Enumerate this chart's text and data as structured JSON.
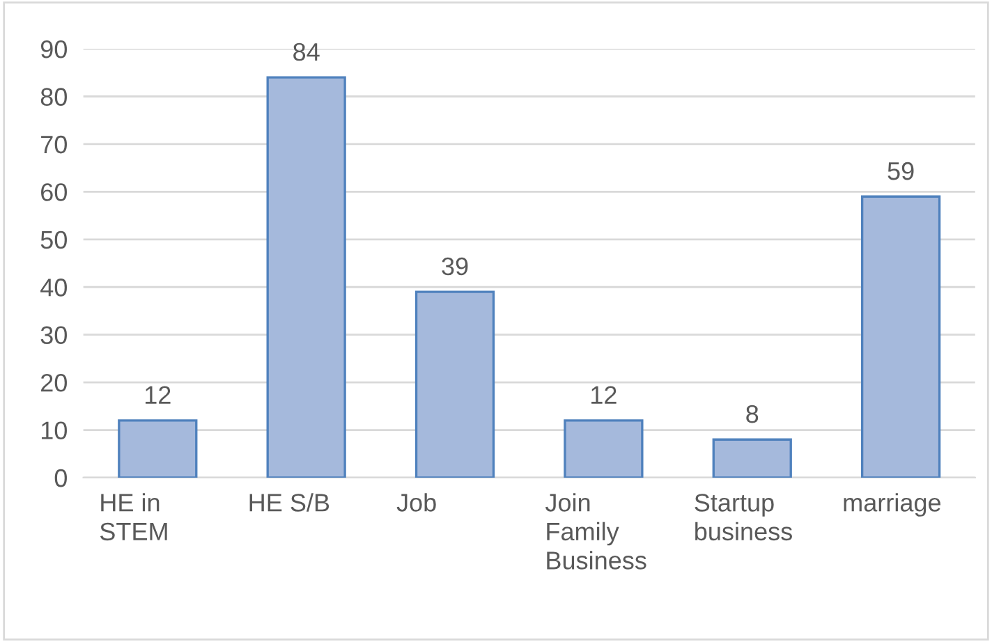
{
  "chart_data": {
    "type": "bar",
    "categories": [
      "HE in\nSTEM",
      "HE S/B",
      "Job",
      "Join\nFamily\nBusiness",
      "Startup\nbusiness",
      "marriage"
    ],
    "values": [
      12,
      84,
      39,
      12,
      8,
      59
    ],
    "color": "#a5b9dc",
    "ylim": [
      0,
      90
    ],
    "yticks": [
      0,
      10,
      20,
      30,
      40,
      50,
      60,
      70,
      80,
      90
    ],
    "grid": "y",
    "data_labels": true
  }
}
